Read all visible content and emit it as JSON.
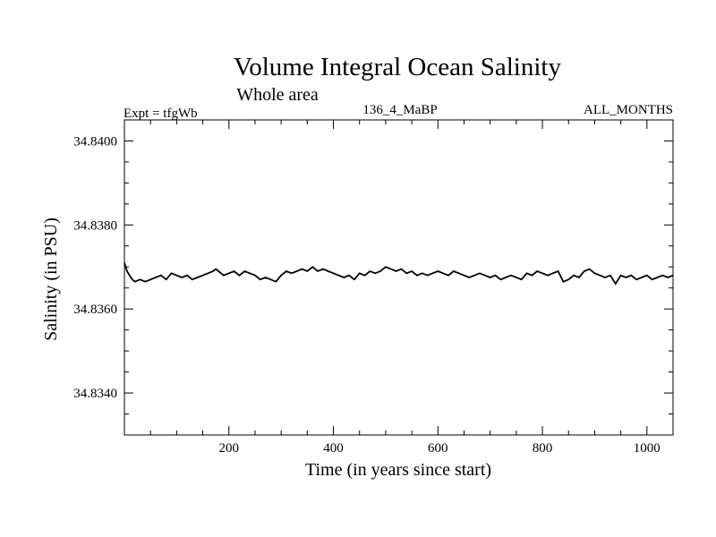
{
  "header": {
    "title": "Volume Integral Ocean Salinity",
    "subtitle": "Whole area",
    "expt_label": "Expt = tfgWb",
    "run_label": "136_4_MaBP",
    "months_label": "ALL_MONTHS"
  },
  "colors": {
    "line": "#000000",
    "axis": "#000000",
    "background": "#ffffff"
  },
  "chart_data": {
    "type": "line",
    "title": "Volume Integral Ocean Salinity",
    "subtitle": "Whole area",
    "xlabel": "Time (in years since start)",
    "ylabel": "Salinity (in PSU)",
    "xlim": [
      0,
      1050
    ],
    "ylim": [
      34.833,
      34.8405
    ],
    "xticks": [
      200,
      400,
      600,
      800,
      1000
    ],
    "xtick_labels": [
      "200",
      "400",
      "600",
      "800",
      "1000"
    ],
    "yticks": [
      34.834,
      34.836,
      34.838,
      34.84
    ],
    "ytick_labels": [
      "34.8340",
      "34.8360",
      "34.8380",
      "34.8400"
    ],
    "grid": false,
    "series": [
      {
        "name": "Salinity",
        "x": [
          0,
          5,
          10,
          15,
          20,
          30,
          40,
          50,
          60,
          70,
          80,
          90,
          100,
          110,
          120,
          130,
          140,
          150,
          160,
          170,
          175,
          180,
          190,
          200,
          210,
          220,
          230,
          240,
          250,
          260,
          270,
          280,
          290,
          300,
          310,
          320,
          330,
          340,
          350,
          360,
          370,
          380,
          390,
          400,
          410,
          420,
          430,
          440,
          450,
          460,
          470,
          480,
          490,
          500,
          510,
          520,
          530,
          540,
          550,
          560,
          570,
          580,
          590,
          600,
          610,
          620,
          630,
          640,
          650,
          660,
          670,
          680,
          690,
          700,
          710,
          720,
          730,
          740,
          750,
          760,
          770,
          780,
          790,
          800,
          810,
          820,
          830,
          840,
          850,
          860,
          870,
          880,
          890,
          900,
          910,
          920,
          930,
          940,
          950,
          960,
          970,
          980,
          990,
          1000,
          1010,
          1020,
          1030,
          1040,
          1050
        ],
        "y": [
          34.8371,
          34.8369,
          34.8368,
          34.8367,
          34.83665,
          34.8367,
          34.83665,
          34.8367,
          34.83675,
          34.8368,
          34.8367,
          34.83685,
          34.8368,
          34.83675,
          34.8368,
          34.8367,
          34.83675,
          34.8368,
          34.83685,
          34.8369,
          34.83695,
          34.8369,
          34.8368,
          34.83685,
          34.8369,
          34.8368,
          34.8369,
          34.83685,
          34.8368,
          34.8367,
          34.83675,
          34.8367,
          34.83665,
          34.8368,
          34.8369,
          34.83685,
          34.8369,
          34.83695,
          34.8369,
          34.837,
          34.8369,
          34.83695,
          34.8369,
          34.83685,
          34.8368,
          34.83675,
          34.8368,
          34.8367,
          34.83685,
          34.8368,
          34.8369,
          34.83685,
          34.8369,
          34.837,
          34.83695,
          34.8369,
          34.83695,
          34.83685,
          34.8369,
          34.8368,
          34.83685,
          34.8368,
          34.83685,
          34.8369,
          34.83685,
          34.8368,
          34.8369,
          34.83685,
          34.8368,
          34.83675,
          34.8368,
          34.83685,
          34.8368,
          34.83675,
          34.8368,
          34.8367,
          34.83675,
          34.8368,
          34.83675,
          34.8367,
          34.83685,
          34.8368,
          34.8369,
          34.83685,
          34.8368,
          34.83685,
          34.8369,
          34.83665,
          34.8367,
          34.8368,
          34.83675,
          34.8369,
          34.83695,
          34.83685,
          34.8368,
          34.83675,
          34.8368,
          34.8366,
          34.8368,
          34.83675,
          34.8368,
          34.8367,
          34.83675,
          34.8368,
          34.8367,
          34.83675,
          34.8368,
          34.83675,
          34.8368
        ]
      }
    ]
  }
}
